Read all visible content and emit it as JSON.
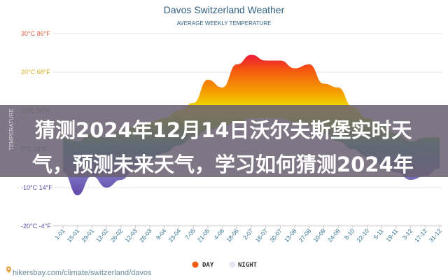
{
  "chart_data": {
    "type": "area",
    "title": "Davos Switzerland Weather",
    "subtitle": "AVERAGE WEEKLY TEMPERATURE",
    "ylabel": "TEMPERATURE",
    "ylim": [
      -20,
      30
    ],
    "yticks": [
      {
        "value": 30,
        "label": "30°C 86°F",
        "color": "#e06040"
      },
      {
        "value": 20,
        "label": "20°C 68°F",
        "color": "#d8b020"
      },
      {
        "value": 10,
        "label": "10°C 50°F",
        "color": "#88aa40"
      },
      {
        "value": 0,
        "label": "0°C 32°F",
        "color": "#3a9a9a"
      },
      {
        "value": -10,
        "label": "-10°C 14°F",
        "color": "#5a4aa0"
      },
      {
        "value": -20,
        "label": "-20°C -4°F",
        "color": "#5a4aa0"
      }
    ],
    "categories": [
      "1-01",
      "15-01",
      "29-01",
      "12-02",
      "26-02",
      "12-03",
      "26-03",
      "9-04",
      "23-04",
      "7-05",
      "21-05",
      "4-06",
      "18-06",
      "2-07",
      "16-07",
      "30-07",
      "13-08",
      "27-08",
      "10-09",
      "24-09",
      "8-10",
      "22-10",
      "5-11",
      "19-11",
      "3-12",
      "17-12",
      "31-12"
    ],
    "series": [
      {
        "name": "DAY",
        "color": "#f05a10",
        "values": [
          3,
          2,
          4,
          3,
          5,
          6,
          7,
          8,
          10,
          12,
          18,
          16,
          22,
          24.5,
          23,
          23,
          21,
          22,
          17,
          16,
          11,
          8,
          6,
          4,
          2,
          3,
          3
        ]
      },
      {
        "name": "NIGHT",
        "color": "#e4e6ee",
        "values": [
          -6,
          -12,
          -7,
          -10,
          -8,
          -5,
          -3,
          -1,
          1,
          3,
          5,
          6,
          7,
          8,
          8,
          8,
          7,
          6,
          4,
          2,
          0,
          -2,
          -4,
          -6,
          -8,
          -7,
          -5
        ]
      }
    ],
    "grid": true,
    "legend": "bottom"
  },
  "source": "hikersbay.com/climate/switzerland/davos",
  "banner": {
    "line1": "猜测2024年12月14日沃尔夫斯堡实时天",
    "line2": "气，预测未来天气，学习如何猜测2024年"
  }
}
